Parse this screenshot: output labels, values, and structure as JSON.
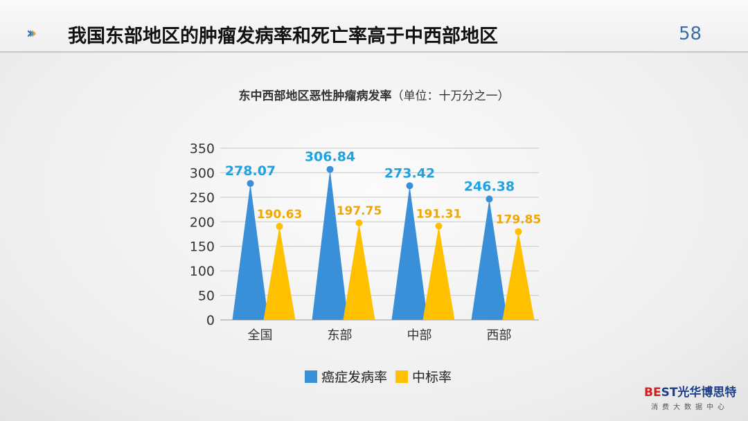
{
  "header": {
    "title": "我国东部地区的肿瘤发病率和死亡率高于中西部地区",
    "page_number": "58"
  },
  "logo": {
    "brand": "BEST光华博思特",
    "subtitle": "消费大数据中心"
  },
  "chart_data": {
    "type": "bar",
    "title_bold": "东中西部地区恶性肿瘤病发率",
    "title_unit": "（单位：十万分之一）",
    "categories": [
      "全国",
      "东部",
      "中部",
      "西部"
    ],
    "series": [
      {
        "name": "癌症发病率",
        "values": [
          278.07,
          306.84,
          273.42,
          246.38
        ],
        "color": "#3a8fd9",
        "label_color": "#1fa3e0"
      },
      {
        "name": "中标率",
        "values": [
          190.63,
          197.75,
          191.31,
          179.85
        ],
        "color": "#ffc000",
        "label_color": "#f0a800"
      }
    ],
    "ylim": [
      0,
      350
    ],
    "yticks": [
      0,
      50,
      100,
      150,
      200,
      250,
      300,
      350
    ],
    "grid": true,
    "legend": "bottom",
    "mark_shape": "triangle"
  }
}
